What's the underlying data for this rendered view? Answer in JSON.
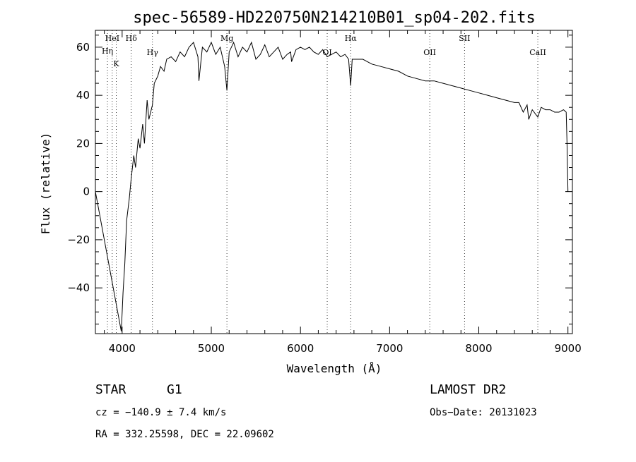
{
  "chart_data": {
    "type": "line",
    "title": "spec-56589-HD220750N214210B01_sp04-202.fits",
    "xlabel": "Wavelength (Å)",
    "ylabel": "Flux (relative)",
    "xlim": [
      3700,
      9050
    ],
    "ylim": [
      -59,
      67
    ],
    "x_ticks": [
      4000,
      5000,
      6000,
      7000,
      8000,
      9000
    ],
    "y_ticks": [
      -40,
      -20,
      0,
      20,
      40,
      60
    ],
    "x_tick_labels": [
      "4000",
      "5000",
      "6000",
      "7000",
      "8000",
      "9000"
    ],
    "y_tick_labels": [
      "−40",
      "−20",
      "0",
      "20",
      "40",
      "60"
    ],
    "grid": false,
    "spectral_lines": [
      {
        "name": "HeI",
        "x": 3889
      },
      {
        "name": "Hη",
        "x": 3835
      },
      {
        "name": "K",
        "x": 3934
      },
      {
        "name": "Hδ",
        "x": 4102
      },
      {
        "name": "Hγ",
        "x": 4340
      },
      {
        "name": "Mg",
        "x": 5175
      },
      {
        "name": "OI",
        "x": 6300
      },
      {
        "name": "Hα",
        "x": 6563
      },
      {
        "name": "OII",
        "x": 7450
      },
      {
        "name": "SII",
        "x": 7840
      },
      {
        "name": "CaII",
        "x": 8662
      }
    ],
    "series": [
      {
        "x": [
          3700,
          3990,
          4000,
          4010,
          4030,
          4050,
          4080,
          4100,
          4130,
          4150,
          4180,
          4200,
          4230,
          4250,
          4280,
          4300,
          4340,
          4360,
          4400,
          4430,
          4470,
          4500,
          4550,
          4600,
          4650,
          4700,
          4750,
          4800,
          4850,
          4861,
          4900,
          4950,
          5000,
          5050,
          5100,
          5150,
          5175,
          5200,
          5250,
          5300,
          5350,
          5400,
          5450,
          5500,
          5550,
          5600,
          5650,
          5700,
          5750,
          5800,
          5850,
          5890,
          5900,
          5950,
          6000,
          6050,
          6100,
          6150,
          6200,
          6250,
          6300,
          6350,
          6400,
          6450,
          6500,
          6540,
          6563,
          6580,
          6620,
          6700,
          6800,
          6900,
          7000,
          7100,
          7200,
          7300,
          7400,
          7500,
          7600,
          7700,
          7800,
          7900,
          8000,
          8100,
          8200,
          8300,
          8400,
          8450,
          8498,
          8542,
          8560,
          8600,
          8662,
          8700,
          8750,
          8800,
          8850,
          8900,
          8950,
          8980,
          8990,
          9000
        ],
        "y": [
          0,
          -58,
          -50,
          -42,
          -30,
          -12,
          -3,
          5,
          15,
          10,
          22,
          18,
          28,
          20,
          38,
          30,
          36,
          45,
          48,
          52,
          50,
          55,
          56,
          54,
          58,
          56,
          60,
          62,
          56,
          46,
          60,
          58,
          62,
          57,
          60,
          52,
          42,
          58,
          62,
          56,
          60,
          58,
          62,
          55,
          57,
          61,
          56,
          58,
          60,
          55,
          57,
          58,
          54,
          59,
          60,
          59,
          60,
          58,
          57,
          59,
          56,
          57,
          58,
          56,
          57,
          55,
          44,
          55,
          55,
          55,
          53,
          52,
          51,
          50,
          48,
          47,
          46,
          46,
          45,
          44,
          43,
          42,
          41,
          40,
          39,
          38,
          37,
          37,
          33,
          36,
          30,
          34,
          31,
          35,
          34,
          34,
          33,
          33,
          34,
          33,
          20,
          0
        ]
      }
    ]
  },
  "info": {
    "object_class": "STAR",
    "subclass": "G1",
    "survey": "LAMOST DR2",
    "redshift": "cz = −140.9 ± 7.4 km/s",
    "obs_date": "Obs−Date: 20131023",
    "coords": "RA = 332.25598, DEC =  22.09602"
  }
}
